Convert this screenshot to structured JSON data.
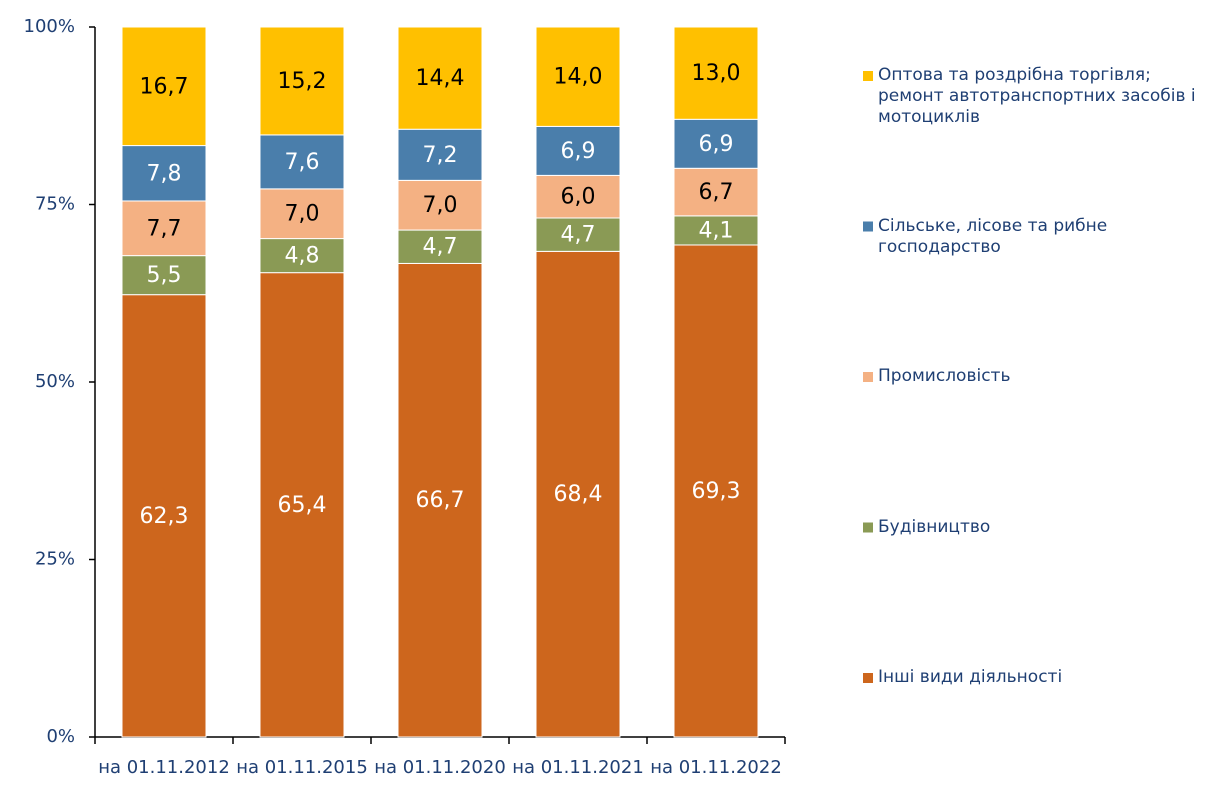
{
  "chart_data": {
    "type": "stacked_bar",
    "categories": [
      "на 01.11.2012",
      "на 01.11.2015",
      "на 01.11.2020",
      "на 01.11.2021",
      "на 01.11.2022"
    ],
    "series": [
      {
        "name": "Інші види діяльності",
        "color": "#cd661d",
        "label_color": "#ffffff",
        "values": [
          62.3,
          65.4,
          66.7,
          68.4,
          69.3
        ],
        "value_labels": [
          "62,3",
          "65,4",
          "66,7",
          "68,4",
          "69,3"
        ]
      },
      {
        "name": "Будівництво",
        "color": "#8a9a55",
        "label_color": "#ffffff",
        "values": [
          5.5,
          4.8,
          4.7,
          4.7,
          4.1
        ],
        "value_labels": [
          "5,5",
          "4,8",
          "4,7",
          "4,7",
          "4,1"
        ]
      },
      {
        "name": "Промисловість",
        "color": "#f4b183",
        "label_color": "#000000",
        "values": [
          7.7,
          7.0,
          7.0,
          6.0,
          6.7
        ],
        "value_labels": [
          "7,7",
          "7,0",
          "7,0",
          "6,0",
          "6,7"
        ]
      },
      {
        "name": "Сільське, лісове та рибне господарство",
        "color": "#4a7eab",
        "label_color": "#ffffff",
        "values": [
          7.8,
          7.6,
          7.2,
          6.9,
          6.9
        ],
        "value_labels": [
          "7,8",
          "7,6",
          "7,2",
          "6,9",
          "6,9"
        ]
      },
      {
        "name": "Оптова та роздрібна торгівля; ремонт автотранспортних засобів і мотоциклів",
        "color": "#ffc000",
        "label_color": "#000000",
        "values": [
          16.7,
          15.2,
          14.4,
          14.0,
          13.0
        ],
        "value_labels": [
          "16,7",
          "15,2",
          "14,4",
          "14,0",
          "13,0"
        ]
      }
    ],
    "ylim": [
      0,
      100
    ],
    "yticks": [
      {
        "value": 0,
        "label": "0%"
      },
      {
        "value": 25,
        "label": "25%"
      },
      {
        "value": 50,
        "label": "50%"
      },
      {
        "value": 75,
        "label": "75%"
      },
      {
        "value": 100,
        "label": "100%"
      }
    ],
    "legend": "right"
  }
}
